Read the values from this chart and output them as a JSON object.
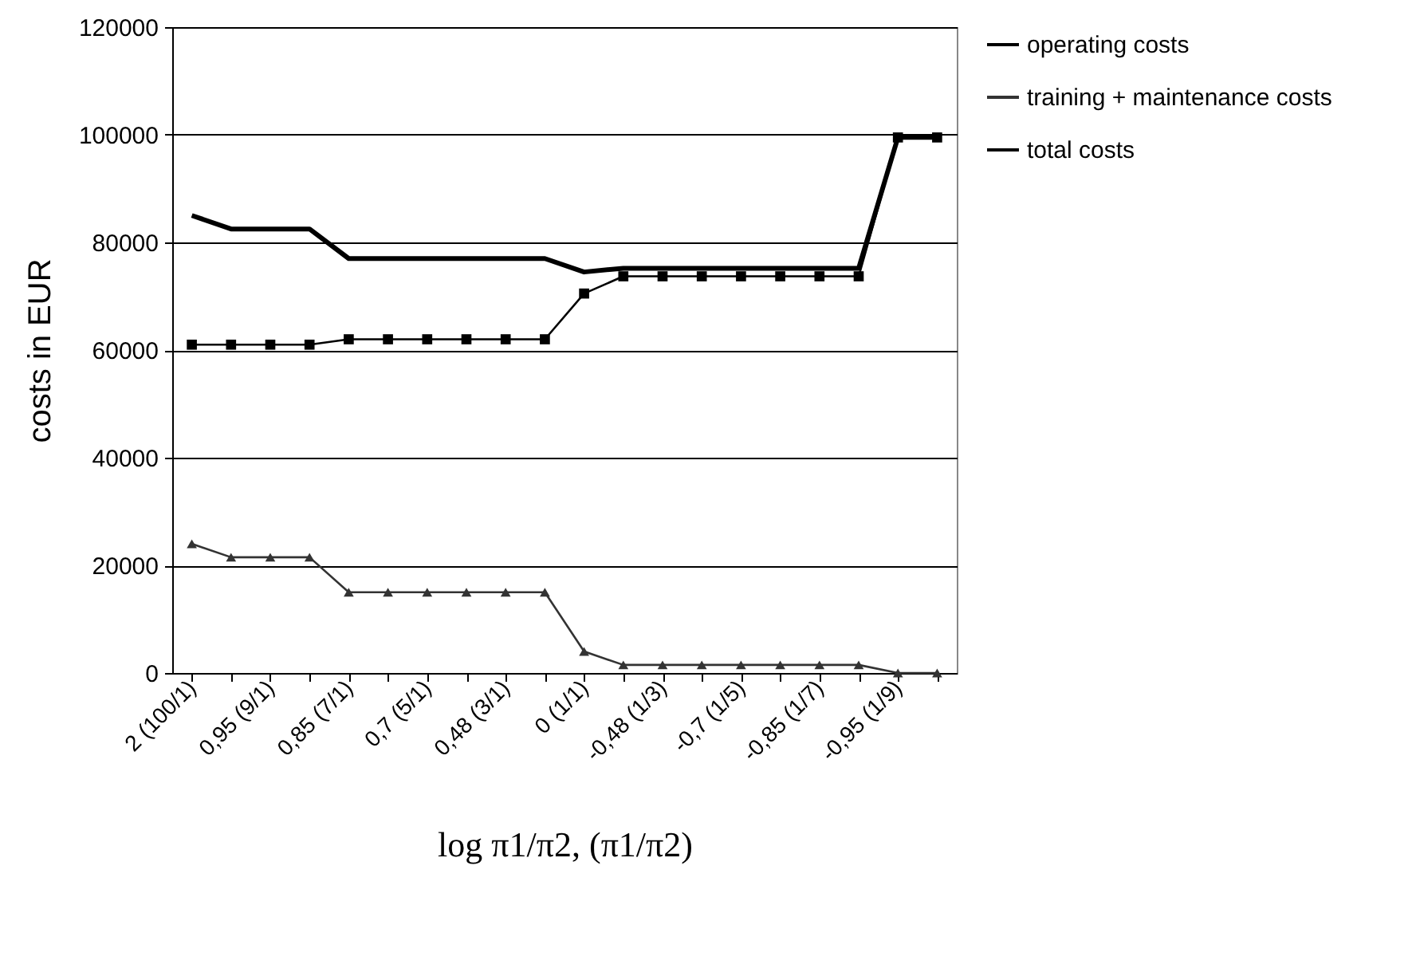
{
  "chart_data": {
    "type": "line",
    "xlabel": "log π1/π2, (π1/π2)",
    "ylabel": "costs in EUR",
    "categories": [
      "2 (100/1)",
      null,
      "0,95 (9/1)",
      null,
      "0,85 (7/1)",
      null,
      "0,7 (5/1)",
      null,
      "0,48 (3/1)",
      null,
      "0 (1/1)",
      null,
      "-0,48 (1/3)",
      null,
      "-0,7 (1/5)",
      null,
      "-0,85 (1/7)",
      null,
      "-0,95 (1/9)",
      null
    ],
    "series": [
      {
        "name": "operating costs",
        "color": "#000000",
        "marker": "square",
        "values": [
          61000,
          61000,
          61000,
          61000,
          62000,
          62000,
          62000,
          62000,
          62000,
          62000,
          70500,
          73700,
          73700,
          73700,
          73700,
          73700,
          73700,
          73700,
          99500,
          99500
        ]
      },
      {
        "name": "training + maintenance costs",
        "color": "#333333",
        "marker": "triangle",
        "values": [
          24000,
          21500,
          21500,
          21500,
          15000,
          15000,
          15000,
          15000,
          15000,
          15000,
          4000,
          1500,
          1500,
          1500,
          1500,
          1500,
          1500,
          1500,
          0,
          0
        ]
      },
      {
        "name": "total costs",
        "color": "#000000",
        "marker": "none",
        "values": [
          85000,
          82500,
          82500,
          82500,
          77000,
          77000,
          77000,
          77000,
          77000,
          77000,
          74500,
          75200,
          75200,
          75200,
          75200,
          75200,
          75200,
          75200,
          99500,
          99500
        ]
      }
    ],
    "ylim": [
      0,
      120000
    ],
    "yticks": [
      0,
      20000,
      40000,
      60000,
      80000,
      100000,
      120000
    ],
    "grid": "y",
    "legend": "right"
  }
}
